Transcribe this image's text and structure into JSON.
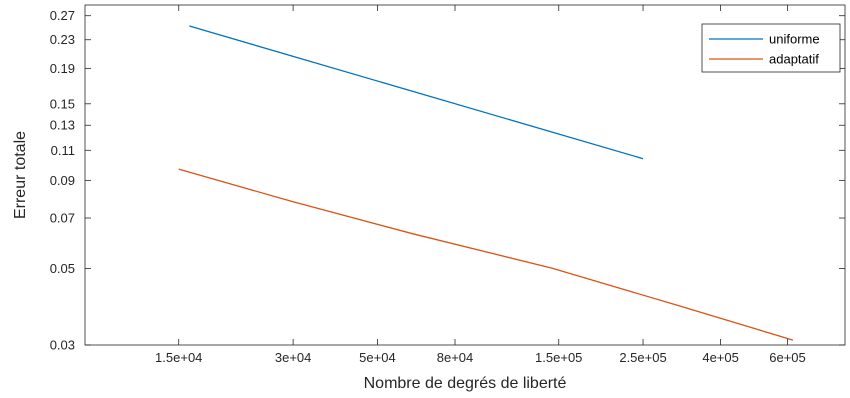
{
  "chart_data": {
    "type": "line",
    "title": "",
    "xlabel": "Nombre de degrés de liberté",
    "ylabel": "Erreur totale",
    "x_scale": "log",
    "y_scale": "log",
    "xlim": [
      8500,
      850000
    ],
    "ylim": [
      0.03,
      0.29
    ],
    "x_ticks": [
      15000,
      30000,
      50000,
      80000,
      150000,
      250000,
      400000,
      600000
    ],
    "x_tick_labels": [
      "1.5e+04",
      "3e+04",
      "5e+04",
      "8e+04",
      "1.5e+05",
      "2.5e+05",
      "4e+05",
      "6e+05"
    ],
    "y_ticks": [
      0.03,
      0.05,
      0.07,
      0.09,
      0.11,
      0.13,
      0.15,
      0.19,
      0.23,
      0.27
    ],
    "y_tick_labels": [
      "0.03",
      "0.05",
      "0.07",
      "0.09",
      "0.11",
      "0.13",
      "0.15",
      "0.19",
      "0.23",
      "0.27"
    ],
    "grid": false,
    "legend_position": "top-right",
    "series": [
      {
        "name": "uniforme",
        "color": "#0072BD",
        "x": [
          16000,
          250000
        ],
        "y": [
          0.252,
          0.104
        ]
      },
      {
        "name": "adaptatif",
        "color": "#D95319",
        "x": [
          15000,
          30000,
          62000,
          145000,
          310000,
          620000
        ],
        "y": [
          0.097,
          0.078,
          0.063,
          0.05,
          0.039,
          0.031
        ]
      }
    ]
  }
}
